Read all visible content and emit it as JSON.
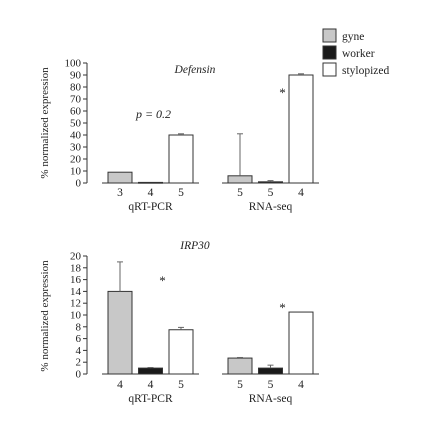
{
  "colors": {
    "gyne": "#c8c8c8",
    "worker": "#1a1a1a",
    "stylopized": "#ffffff",
    "stroke": "#333333"
  },
  "legend": {
    "placement": "top-right",
    "items": [
      {
        "key": "gyne",
        "label": "gyne"
      },
      {
        "key": "worker",
        "label": "worker"
      },
      {
        "key": "stylopized",
        "label": "stylopized"
      }
    ]
  },
  "chart_data": [
    {
      "type": "bar",
      "title": "Defensin",
      "ylabel": "% normalized expression",
      "ylim": [
        0,
        100
      ],
      "yticks": [
        0,
        10,
        20,
        30,
        40,
        50,
        60,
        70,
        80,
        90,
        100
      ],
      "grid": false,
      "groups": [
        {
          "name": "qRT-PCR",
          "bars": [
            {
              "series": "gyne",
              "value": 9,
              "error": 0,
              "n": "3"
            },
            {
              "series": "worker",
              "value": 0.5,
              "error": 0,
              "n": "4"
            },
            {
              "series": "stylopized",
              "value": 40,
              "error": 1,
              "n": "5"
            }
          ]
        },
        {
          "name": "RNA-seq",
          "bars": [
            {
              "series": "gyne",
              "value": 6,
              "error": 35,
              "n": "5"
            },
            {
              "series": "worker",
              "value": 1,
              "error": 1,
              "n": "5"
            },
            {
              "series": "stylopized",
              "value": 90,
              "error": 1,
              "n": "4"
            }
          ]
        }
      ],
      "annotations": [
        {
          "text": "p = 0.2",
          "group": 0
        },
        {
          "text": "*",
          "group": 1
        }
      ]
    },
    {
      "type": "bar",
      "title": "IRP30",
      "ylabel": "% normalized expression",
      "ylim": [
        0,
        20
      ],
      "yticks": [
        0,
        2,
        4,
        6,
        8,
        10,
        12,
        14,
        16,
        18,
        20
      ],
      "grid": false,
      "groups": [
        {
          "name": "qRT-PCR",
          "bars": [
            {
              "series": "gyne",
              "value": 14,
              "error": 5,
              "n": "4"
            },
            {
              "series": "worker",
              "value": 1,
              "error": 0.1,
              "n": "4"
            },
            {
              "series": "stylopized",
              "value": 7.5,
              "error": 0.4,
              "n": "5"
            }
          ]
        },
        {
          "name": "RNA-seq",
          "bars": [
            {
              "series": "gyne",
              "value": 2.7,
              "error": 0.1,
              "n": "5"
            },
            {
              "series": "worker",
              "value": 1,
              "error": 0.5,
              "n": "5"
            },
            {
              "series": "stylopized",
              "value": 10.5,
              "error": 0,
              "n": "4"
            }
          ]
        }
      ],
      "annotations": [
        {
          "text": "*",
          "group": 0
        },
        {
          "text": "*",
          "group": 1
        }
      ]
    }
  ]
}
